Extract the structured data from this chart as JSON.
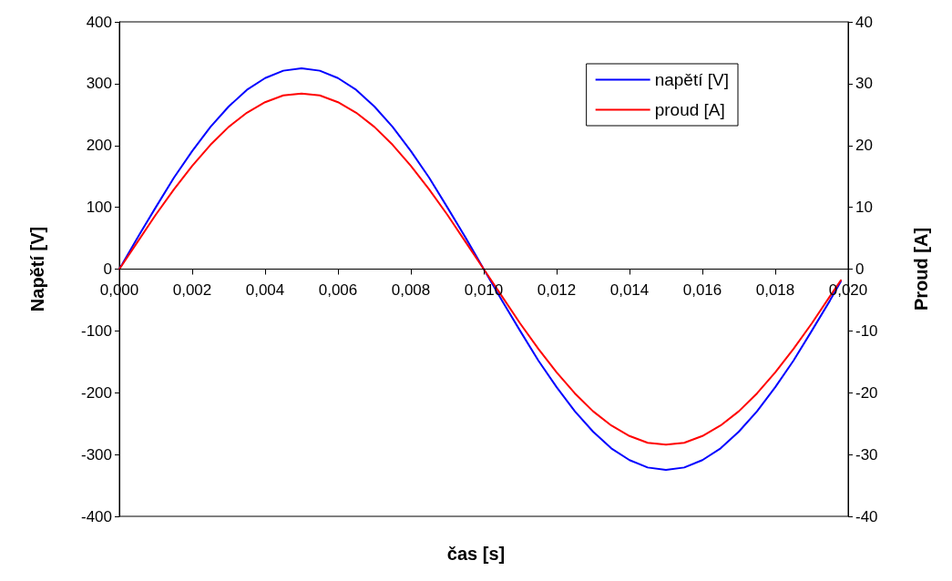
{
  "chart_data": {
    "type": "line",
    "xlabel": "čas [s]",
    "ylabel": "Napětí [V]",
    "y2label": "Proud [A]",
    "x": [
      0,
      0.0005,
      0.001,
      0.0015,
      0.002,
      0.0025,
      0.003,
      0.0035,
      0.004,
      0.0045,
      0.005,
      0.0055,
      0.006,
      0.0065,
      0.007,
      0.0075,
      0.008,
      0.0085,
      0.009,
      0.0095,
      0.01,
      0.0105,
      0.011,
      0.0115,
      0.012,
      0.0125,
      0.013,
      0.0135,
      0.014,
      0.0145,
      0.015,
      0.0155,
      0.016,
      0.0165,
      0.017,
      0.0175,
      0.018,
      0.0185,
      0.019,
      0.0195,
      0.0198
    ],
    "series": [
      {
        "name": "napětí [V]",
        "color": "#0000ff",
        "values": [
          0,
          51,
          100,
          148,
          191,
          230,
          263,
          290,
          309,
          321,
          325,
          321,
          309,
          290,
          263,
          230,
          191,
          148,
          100,
          51,
          0,
          -51,
          -100,
          -148,
          -191,
          -230,
          -263,
          -290,
          -309,
          -321,
          -325,
          -321,
          -309,
          -290,
          -263,
          -230,
          -191,
          -148,
          -100,
          -51,
          -20
        ]
      },
      {
        "name": "proud [A]",
        "color": "#ff0000",
        "axis": "y2",
        "values": [
          0,
          4.4,
          8.8,
          12.9,
          16.7,
          20.1,
          23.0,
          25.3,
          27.0,
          28.1,
          28.4,
          28.1,
          27.0,
          25.3,
          23.0,
          20.1,
          16.7,
          12.9,
          8.8,
          4.4,
          0,
          -4.4,
          -8.8,
          -12.9,
          -16.7,
          -20.1,
          -23.0,
          -25.3,
          -27.0,
          -28.1,
          -28.4,
          -28.1,
          -27.0,
          -25.3,
          -23.0,
          -20.1,
          -16.7,
          -12.9,
          -8.8,
          -4.4,
          -1.8
        ]
      }
    ],
    "xlim": [
      0,
      0.02
    ],
    "xticks": [
      {
        "value": 0,
        "label": "0,000"
      },
      {
        "value": 0.002,
        "label": "0,002"
      },
      {
        "value": 0.004,
        "label": "0,004"
      },
      {
        "value": 0.006,
        "label": "0,006"
      },
      {
        "value": 0.008,
        "label": "0,008"
      },
      {
        "value": 0.01,
        "label": "0,010"
      },
      {
        "value": 0.012,
        "label": "0,012"
      },
      {
        "value": 0.014,
        "label": "0,014"
      },
      {
        "value": 0.016,
        "label": "0,016"
      },
      {
        "value": 0.018,
        "label": "0,018"
      },
      {
        "value": 0.02,
        "label": "0,020"
      }
    ],
    "ylim": [
      -400,
      400
    ],
    "yticks": [
      -400,
      -300,
      -200,
      -100,
      0,
      100,
      200,
      300,
      400
    ],
    "y2lim": [
      -40,
      40
    ],
    "y2ticks": [
      -40,
      -30,
      -20,
      -10,
      0,
      10,
      20,
      30,
      40
    ],
    "grid": false,
    "legend": "top right",
    "marker": "none",
    "line_style": "solid"
  }
}
